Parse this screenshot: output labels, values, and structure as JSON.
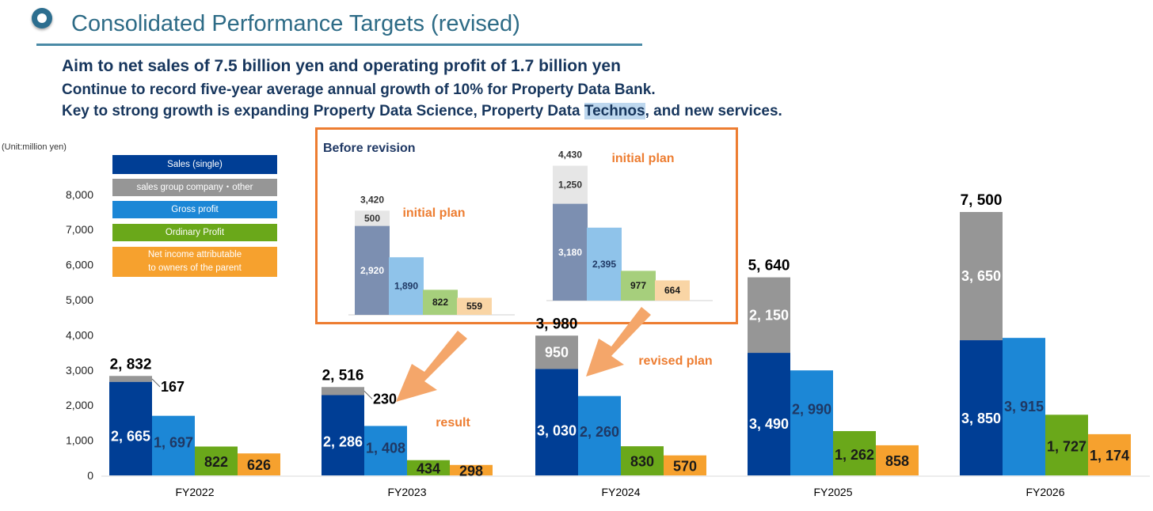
{
  "header": {
    "title": "Consolidated Performance Targets (revised)",
    "subtitle1": "Aim to net sales of 7.5 billion yen and operating profit of 1.7 billion yen",
    "subtitle2": "Continue to record five-year average annual growth of 10% for Property Data Bank.",
    "subtitle3_a": "Key to strong growth is expanding Property Data Science, Property Data ",
    "subtitle3_hl": "Technos",
    "subtitle3_b": ", and new services."
  },
  "unit_label": "(Unit:million yen)",
  "colors": {
    "sales": "#003e95",
    "group": "#969696",
    "gross": "#1c87d6",
    "ordinary": "#6aa81a",
    "net": "#f6a12e",
    "inset_sales": "#7c8fb1",
    "inset_group": "#e6e6e6",
    "inset_gross": "#8fc3ea",
    "inset_ordinary": "#a6cf7c",
    "inset_net": "#f9d5a5",
    "accent": "#ed7d31"
  },
  "legend": [
    {
      "label": "Sales (single)",
      "color": "#003e95"
    },
    {
      "label": "sales group company・other",
      "color": "#969696"
    },
    {
      "label": "Gross profit",
      "color": "#1c87d6"
    },
    {
      "label": "Ordinary Profit",
      "color": "#6aa81a"
    },
    {
      "label": "Net income attributable\nto owners of the parent",
      "color": "#f6a12e"
    }
  ],
  "chart_data": {
    "type": "bar",
    "stacked_first_bar": true,
    "categories": [
      "FY2022",
      "FY2023",
      "FY2024",
      "FY2025",
      "FY2026"
    ],
    "ylim": [
      0,
      8000
    ],
    "yticks": [
      "0",
      "1,000",
      "2,000",
      "3,000",
      "4,000",
      "5,000",
      "6,000",
      "7,000",
      "8,000"
    ],
    "ytick_values": [
      0,
      1000,
      2000,
      3000,
      4000,
      5000,
      6000,
      7000,
      8000
    ],
    "series": [
      {
        "name": "Sales (single)",
        "values": [
          2665,
          2286,
          3030,
          3490,
          3850
        ],
        "labels": [
          "2, 665",
          "2, 286",
          "3, 030",
          "3, 490",
          "3, 850"
        ]
      },
      {
        "name": "sales group company・other",
        "values": [
          167,
          230,
          950,
          2150,
          3650
        ],
        "labels": [
          "167",
          "230",
          "950",
          "2, 150",
          "3, 650"
        ]
      },
      {
        "name": "Gross profit",
        "values": [
          1697,
          1408,
          2260,
          2990,
          3915
        ],
        "labels": [
          "1, 697",
          "1, 408",
          "2, 260",
          "2, 990",
          "3, 915"
        ]
      },
      {
        "name": "Ordinary Profit",
        "values": [
          822,
          434,
          830,
          1262,
          1727
        ],
        "labels": [
          "822",
          "434",
          "830",
          "1, 262",
          "1, 727"
        ]
      },
      {
        "name": "Net income attributable to owners of the parent",
        "values": [
          626,
          298,
          570,
          858,
          1174
        ],
        "labels": [
          "626",
          "298",
          "570",
          "858",
          "1, 174"
        ]
      }
    ],
    "totals": [
      "2, 832",
      "2, 516",
      "3, 980",
      "5, 640",
      "7, 500"
    ],
    "annotations": {
      "result": "result",
      "revised_plan": "revised plan"
    },
    "before_revision": {
      "title": "Before revision",
      "plan_label": "initial plan",
      "plans": [
        {
          "sales": 2920,
          "group": 500,
          "gross": 1890,
          "ordinary": 822,
          "net": 559,
          "total": 3420,
          "labels": {
            "sales": "2,920",
            "group": "500",
            "gross": "1,890",
            "ordinary": "822",
            "net": "559",
            "total": "3,420"
          }
        },
        {
          "sales": 3180,
          "group": 1250,
          "gross": 2395,
          "ordinary": 977,
          "net": 664,
          "total": 4430,
          "labels": {
            "sales": "3,180",
            "group": "1,250",
            "gross": "2,395",
            "ordinary": "977",
            "net": "664",
            "total": "4,430"
          }
        }
      ]
    }
  }
}
